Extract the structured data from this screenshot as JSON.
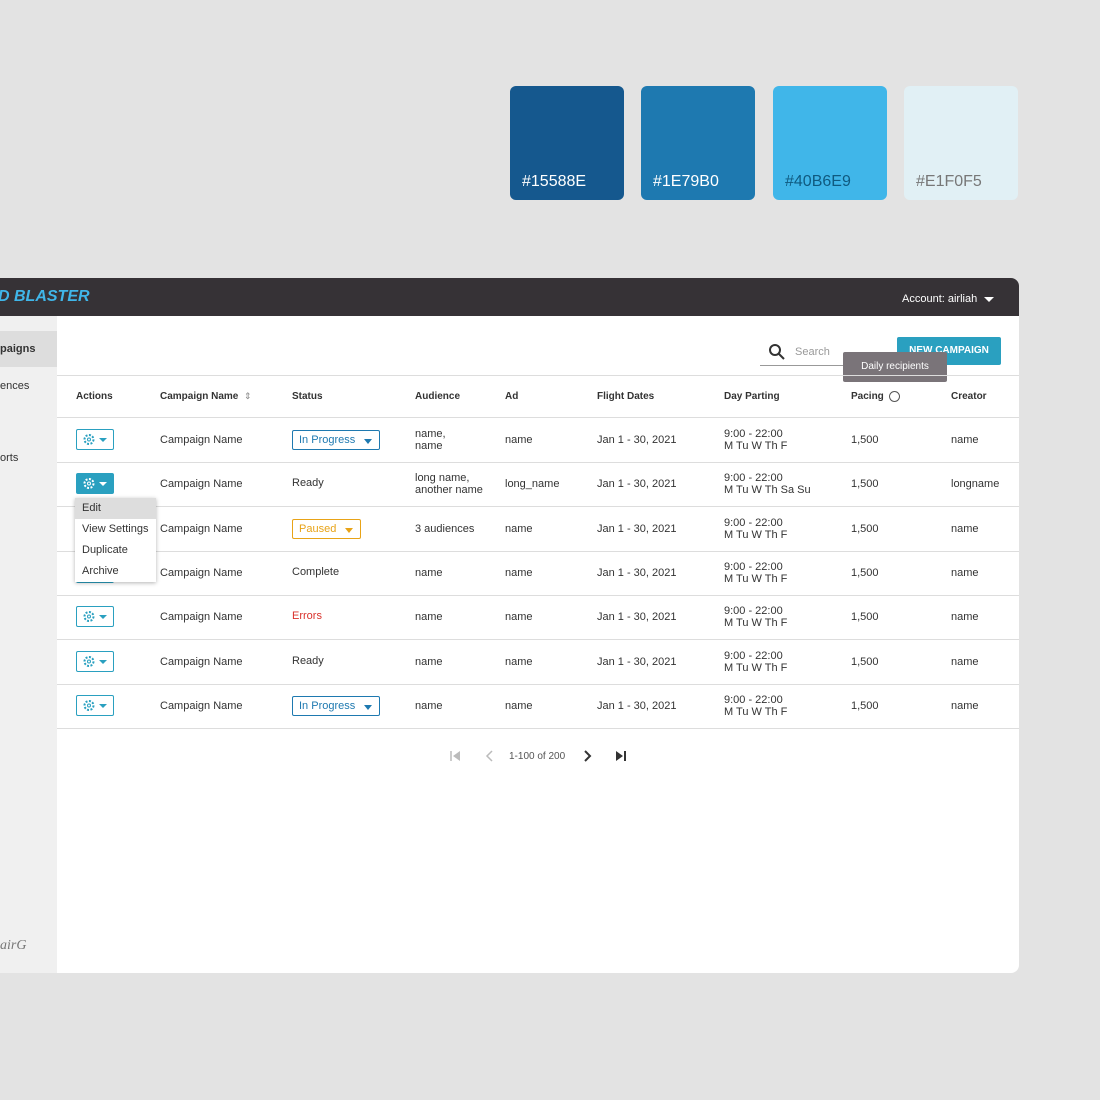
{
  "palette": [
    "#15588E",
    "#1E79B0",
    "#40B6E9",
    "#E1F0F5"
  ],
  "header": {
    "brand": "D BLASTER",
    "account": "Account: airliah"
  },
  "sidebar": {
    "items": [
      "paigns",
      "ences",
      "orts"
    ],
    "logo": "airG"
  },
  "toolbar": {
    "search": "Search",
    "button": "NEW CAMPAIGN",
    "tooltip": "Daily recipients"
  },
  "table": {
    "columns": [
      "Actions",
      "Campaign Name",
      "Status",
      "Audience",
      "Ad",
      "Flight Dates",
      "Day Parting",
      "Pacing",
      "Creator"
    ],
    "rows": [
      {
        "name": "Campaign Name",
        "status": "In Progress",
        "audience": [
          "name,",
          "name"
        ],
        "ad": "name",
        "flight": "Jan 1 - 30, 2021",
        "dayparting": [
          "9:00 - 22:00",
          "M Tu W Th F"
        ],
        "pacing": "1,500",
        "creator": "name"
      },
      {
        "name": "Campaign Name",
        "status": "Ready",
        "audience": [
          "long name,",
          "another name"
        ],
        "ad": "long_name",
        "flight": "Jan 1 - 30, 2021",
        "dayparting": [
          "9:00 - 22:00",
          "M Tu W Th Sa Su"
        ],
        "pacing": "1,500",
        "creator": "longname"
      },
      {
        "name": "Campaign Name",
        "status": "Paused",
        "audience": [
          "3 audiences"
        ],
        "ad": "name",
        "flight": "Jan 1 - 30, 2021",
        "dayparting": [
          "9:00 - 22:00",
          "M Tu W Th F"
        ],
        "pacing": "1,500",
        "creator": "name"
      },
      {
        "name": "Campaign Name",
        "status": "Complete",
        "audience": [
          "name"
        ],
        "ad": "name",
        "flight": "Jan 1 - 30, 2021",
        "dayparting": [
          "9:00 - 22:00",
          "M Tu W Th F"
        ],
        "pacing": "1,500",
        "creator": "name"
      },
      {
        "name": "Campaign Name",
        "status": "Errors",
        "audience": [
          "name"
        ],
        "ad": "name",
        "flight": "Jan 1 - 30, 2021",
        "dayparting": [
          "9:00 - 22:00",
          "M Tu W Th F"
        ],
        "pacing": "1,500",
        "creator": "name"
      },
      {
        "name": "Campaign Name",
        "status": "Ready",
        "audience": [
          "name"
        ],
        "ad": "name",
        "flight": "Jan 1 - 30, 2021",
        "dayparting": [
          "9:00 - 22:00",
          "M Tu W Th F"
        ],
        "pacing": "1,500",
        "creator": "name"
      },
      {
        "name": "Campaign Name",
        "status": "In Progress",
        "audience": [
          "name"
        ],
        "ad": "name",
        "flight": "Jan 1 - 30, 2021",
        "dayparting": [
          "9:00 - 22:00",
          "M Tu W Th F"
        ],
        "pacing": "1,500",
        "creator": "name"
      }
    ]
  },
  "menu": [
    "Edit",
    "View Settings",
    "Duplicate",
    "Archive"
  ],
  "pagination": {
    "range": "1-100 of 200"
  }
}
